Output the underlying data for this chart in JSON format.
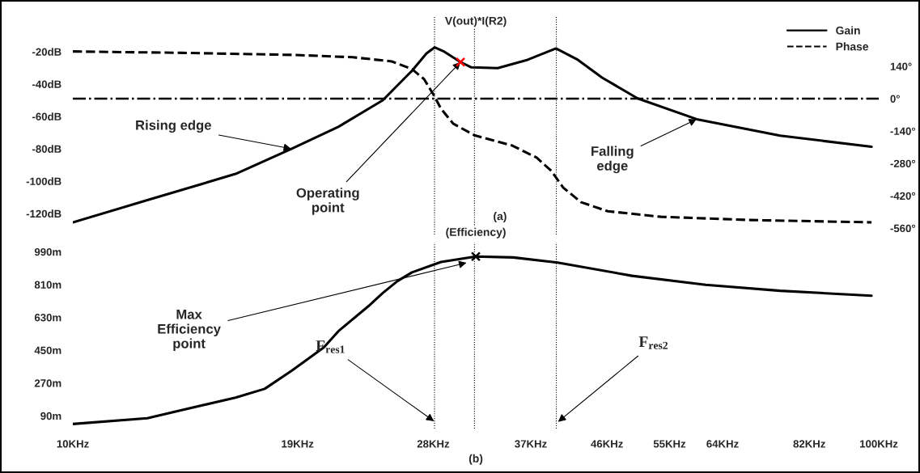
{
  "chart_data": [
    {
      "type": "line",
      "title": "V(out)*I(R2)",
      "xlabel": "(a)",
      "log": "x",
      "grid": false,
      "legend": "top right",
      "tick_labels": "y",
      "xlim": [
        10,
        100
      ],
      "ylim": [
        -133,
        2
      ],
      "yticks": [
        {
          "value": -20,
          "label": "-20dB"
        },
        {
          "value": -40,
          "label": "-40dB"
        },
        {
          "value": -60,
          "label": "-60dB"
        },
        {
          "value": -80,
          "label": "-80dB"
        },
        {
          "value": -100,
          "label": "-100dB"
        },
        {
          "value": -120,
          "label": "-120dB"
        }
      ],
      "y2lim": [
        -588,
        357
      ],
      "y2ticks": [
        {
          "value": 140,
          "label": "140°"
        },
        {
          "value": 0,
          "label": "0°"
        },
        {
          "value": -140,
          "label": "-140°"
        },
        {
          "value": -280,
          "label": "-280°"
        },
        {
          "value": -420,
          "label": "-420°"
        },
        {
          "value": -560,
          "label": "-560°"
        }
      ],
      "series": [
        {
          "name": "Gain",
          "color": "#000000",
          "line_style": "solid",
          "x": [
            10,
            12.37,
            15.92,
            18.67,
            21.35,
            24.24,
            26.35,
            27.47,
            28.12,
            28.9,
            30.27,
            31.19,
            33.66,
            36.67,
            39.76,
            42.32,
            45.36,
            50.22,
            59.43,
            75.43,
            97.95
          ],
          "values": [
            -125.5,
            -111.7,
            -95.5,
            -80,
            -66.4,
            -50,
            -31.8,
            -21,
            -17.3,
            -20,
            -26.4,
            -29.6,
            -30.1,
            -25,
            -18,
            -25,
            -36,
            -48.9,
            -61.7,
            -71.9,
            -78.7
          ]
        },
        {
          "name": "Phase",
          "color": "#000000",
          "line_style": "dashed",
          "axis": "y2",
          "x": [
            10,
            13.66,
            18.84,
            22.25,
            24.87,
            26.35,
            27.28,
            27.98,
            28.63,
            29.64,
            31.48,
            35.1,
            37.62,
            39.22,
            40.6,
            42.72,
            46.1,
            53.7,
            69.4,
            97.95
          ],
          "values": [
            204,
            198,
            189,
            179,
            161,
            128,
            84,
            21,
            -44,
            -108,
            -158,
            -203,
            -255,
            -312,
            -385,
            -448,
            -487,
            -511,
            -525,
            -535
          ]
        },
        {
          "type": "scatter",
          "color": "#ff0000",
          "marker": "cross",
          "x": [
            30.27
          ],
          "values": [
            -26.4
          ]
        }
      ],
      "ref_lines": [
        {
          "axis": "y2",
          "value": 0,
          "color": "#000000",
          "line_style": "dashdot"
        },
        {
          "axis": "x",
          "value": 28.1,
          "color": "#000000",
          "line_style": "dotted"
        },
        {
          "axis": "x",
          "value": 31.5,
          "color": "#000000",
          "line_style": "dotted"
        },
        {
          "axis": "x",
          "value": 39.8,
          "color": "#000000",
          "line_style": "dotted"
        }
      ],
      "annotations": [
        {
          "text": "Rising edge",
          "x": 18.67,
          "y": -80
        },
        {
          "text": "Operating\npoint",
          "x": 30.27,
          "y": -26.4
        },
        {
          "text": "Falling\nedge",
          "x": 59.43,
          "y": -61.7
        }
      ]
    },
    {
      "type": "line",
      "title": "(Efficiency)",
      "xlabel": "(b)",
      "log": "x",
      "grid": false,
      "xlim": [
        10,
        100
      ],
      "xticks": [
        {
          "value": 10,
          "label": "10KHz"
        },
        {
          "value": 19,
          "label": "19KHz"
        },
        {
          "value": 28,
          "label": "28KHz"
        },
        {
          "value": 37,
          "label": "37KHz"
        },
        {
          "value": 46,
          "label": "46KHz"
        },
        {
          "value": 55,
          "label": "55KHz"
        },
        {
          "value": 64,
          "label": "64KHz"
        },
        {
          "value": 82,
          "label": "82KHz"
        },
        {
          "value": 100,
          "label": "100KHz"
        }
      ],
      "ylim": [
        20,
        1040
      ],
      "yticks": [
        {
          "value": 990,
          "label": "990m"
        },
        {
          "value": 810,
          "label": "810m"
        },
        {
          "value": 630,
          "label": "630m"
        },
        {
          "value": 450,
          "label": "450m"
        },
        {
          "value": 270,
          "label": "270m"
        },
        {
          "value": 90,
          "label": "90m"
        }
      ],
      "series": [
        {
          "color": "#000000",
          "line_style": "solid",
          "x": [
            10,
            12.37,
            15.92,
            17.3,
            18.67,
            20.48,
            21.35,
            23.26,
            24.24,
            25.28,
            26.35,
            28.63,
            31.62,
            35.18,
            39.94,
            49.41,
            60.98,
            75.43,
            97.95
          ],
          "values": [
            45,
            77,
            190,
            238,
            336,
            465,
            554,
            691,
            764,
            829,
            877,
            934,
            964,
            959,
            931,
            858,
            809,
            776,
            749
          ]
        },
        {
          "type": "scatter",
          "color": "#000000",
          "marker": "cross",
          "x": [
            31.62
          ],
          "values": [
            964
          ]
        }
      ],
      "ref_lines": [
        {
          "axis": "x",
          "value": 28.1,
          "color": "#000000",
          "line_style": "dotted"
        },
        {
          "axis": "x",
          "value": 31.5,
          "color": "#000000",
          "line_style": "dotted"
        },
        {
          "axis": "x",
          "value": 39.8,
          "color": "#000000",
          "line_style": "dotted"
        }
      ],
      "annotations": [
        {
          "text": "Max\nEfficiency\npoint",
          "x": 30.8,
          "y": 930
        },
        {
          "text": "F$_{res1}$",
          "x": 28.06,
          "y": 60
        },
        {
          "text": "F$_{res2}$",
          "x": 40.0,
          "y": 57
        }
      ]
    }
  ]
}
